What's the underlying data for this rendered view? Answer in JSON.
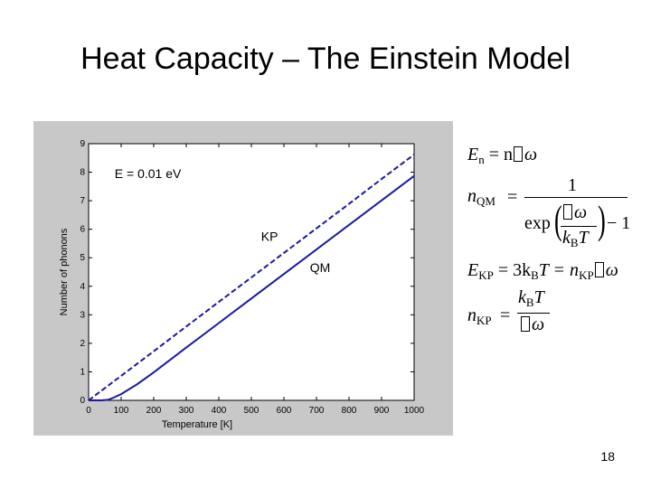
{
  "slide": {
    "title": "Heat Capacity – The Einstein Model",
    "page_number": "18"
  },
  "chart_data": {
    "type": "line",
    "title": "",
    "xlabel": "Temperature [K]",
    "ylabel": "Number of phonons",
    "xlim": [
      0,
      1000
    ],
    "ylim": [
      0,
      9
    ],
    "xticks": [
      0,
      100,
      200,
      300,
      400,
      500,
      600,
      700,
      800,
      900,
      1000
    ],
    "yticks": [
      0,
      1,
      2,
      3,
      4,
      5,
      6,
      7,
      8,
      9
    ],
    "grid": false,
    "legend": "none",
    "annotations": [
      {
        "text": "E = 0.01 eV",
        "x": 80,
        "y": 7.8
      },
      {
        "text": "KP",
        "x": 530,
        "y": 5.6
      },
      {
        "text": "QM",
        "x": 680,
        "y": 4.5
      }
    ],
    "series": [
      {
        "label_ref": "KP",
        "style": "dashed",
        "color": "#1a1aa0",
        "x": [
          0,
          100,
          200,
          300,
          400,
          500,
          600,
          700,
          800,
          900,
          1000
        ],
        "y": [
          0.0,
          0.86,
          1.72,
          2.59,
          3.45,
          4.31,
          5.17,
          6.03,
          6.89,
          7.76,
          8.62
        ]
      },
      {
        "label_ref": "QM",
        "style": "solid",
        "color": "#1a1aa0",
        "x": [
          0,
          20,
          40,
          60,
          80,
          100,
          150,
          200,
          300,
          400,
          500,
          600,
          700,
          800,
          900,
          1000
        ],
        "y": [
          0.0,
          0.0,
          0.0,
          0.02,
          0.11,
          0.22,
          0.57,
          0.98,
          1.85,
          2.71,
          3.57,
          4.43,
          5.29,
          6.15,
          7.01,
          7.87
        ]
      }
    ]
  },
  "equations": {
    "e1_lhs": "E",
    "e1_sub": "n",
    "e1_rhs": " = n",
    "e1_omega": "ω",
    "e2_lhs": "n",
    "e2_sub": "QM",
    "e2_eq": "=",
    "e2_num": "1",
    "e2_exp": "exp",
    "e2_omega": "ω",
    "e2_kb": "k",
    "e2_kb_sub": "B",
    "e2_T": "T",
    "e2_minus": "− 1",
    "e3_text": "E",
    "e3_sub": "KP",
    "e3_mid": " = 3k",
    "e3_sub2": "B",
    "e3_T": "T = n",
    "e3_sub3": "KP",
    "e3_omega": "ω",
    "e4_lhs": "n",
    "e4_sub": "KP",
    "e4_eq": "=",
    "e4_kb": "k",
    "e4_kb_sub": "B",
    "e4_T": "T",
    "e4_omega": "ω"
  }
}
